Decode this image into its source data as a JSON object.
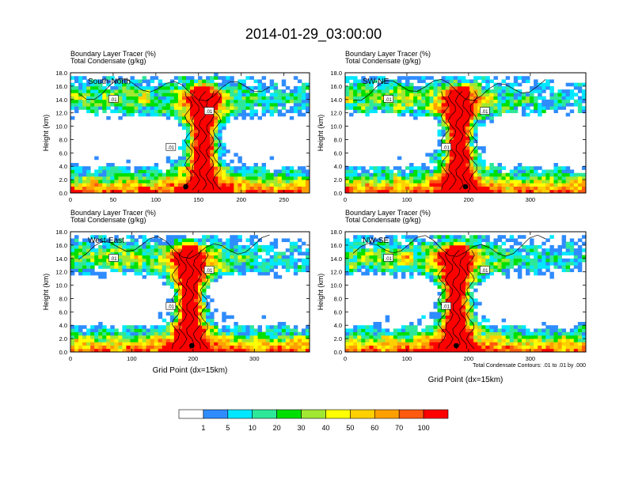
{
  "title": "2014-01-29_03:00:00",
  "panel_header_line1": "Boundary Layer Tracer    (%)",
  "panel_header_line2": "Total Condensate    (g/kg)",
  "ylabel": "Height (km)",
  "xlabel": "Grid Point (dx=15km)",
  "contour_note": "Total Condensate Contours: .01 to .01 by .000",
  "contour_label": ".01",
  "colorbar": {
    "colors": [
      "#ffffff",
      "#2f8cff",
      "#00e8ff",
      "#2ee89a",
      "#00e000",
      "#a0e832",
      "#ffff00",
      "#ffd000",
      "#ffa000",
      "#ff5a10",
      "#ff0000"
    ],
    "labels": [
      "1",
      "5",
      "10",
      "20",
      "30",
      "40",
      "50",
      "60",
      "70",
      "100"
    ]
  },
  "chart_data": [
    {
      "type": "heatmap",
      "name": "South-North",
      "x_ticks": [
        0,
        50,
        100,
        150,
        200,
        250
      ],
      "xlim": [
        0,
        280
      ],
      "y_ticks": [
        "0.0",
        "2.0",
        "4.0",
        "6.0",
        "8.0",
        "10.0",
        "12.0",
        "14.0",
        "16.0",
        "18.0"
      ],
      "ylim": [
        0,
        18
      ],
      "core_x": 155,
      "marker_x": 135
    },
    {
      "type": "heatmap",
      "name": "SW-NE",
      "x_ticks": [
        0,
        100,
        200,
        300
      ],
      "xlim": [
        0,
        390
      ],
      "y_ticks": [
        "0.0",
        "2.0",
        "4.0",
        "6.0",
        "8.0",
        "10.0",
        "12.0",
        "14.0",
        "16.0",
        "18.0"
      ],
      "ylim": [
        0,
        18
      ],
      "core_x": 185,
      "marker_x": 195
    },
    {
      "type": "heatmap",
      "name": "West-East",
      "x_ticks": [
        0,
        100,
        200,
        300
      ],
      "xlim": [
        0,
        390
      ],
      "y_ticks": [
        "0.0",
        "2.0",
        "4.0",
        "6.0",
        "8.0",
        "10.0",
        "12.0",
        "14.0",
        "16.0",
        "18.0"
      ],
      "ylim": [
        0,
        18
      ],
      "core_x": 195,
      "marker_x": 198
    },
    {
      "type": "heatmap",
      "name": "NW-SE",
      "x_ticks": [
        0,
        100,
        200,
        300
      ],
      "xlim": [
        0,
        390
      ],
      "y_ticks": [
        "0.0",
        "2.0",
        "4.0",
        "6.0",
        "8.0",
        "10.0",
        "12.0",
        "14.0",
        "16.0",
        "18.0"
      ],
      "ylim": [
        0,
        18
      ],
      "core_x": 180,
      "marker_x": 180
    }
  ]
}
